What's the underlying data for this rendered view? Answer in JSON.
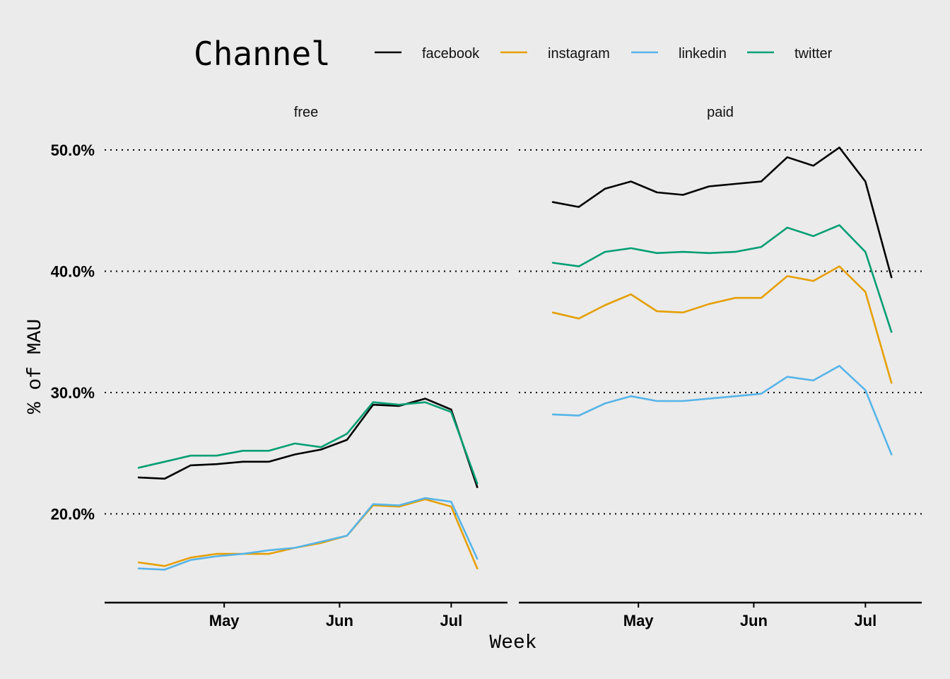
{
  "chart_data": {
    "type": "line",
    "legend": {
      "title": "Channel",
      "placement": "top",
      "entries": [
        {
          "name": "facebook",
          "color": "#000000"
        },
        {
          "name": "instagram",
          "color": "#E69F00"
        },
        {
          "name": "linkedin",
          "color": "#56B4E9"
        },
        {
          "name": "twitter",
          "color": "#009E73"
        }
      ]
    },
    "xlabel": "Week",
    "ylabel": "% of MAU",
    "x_ticks": [
      {
        "label": "May",
        "date": "2020-05-01"
      },
      {
        "label": "Jun",
        "date": "2020-06-01"
      },
      {
        "label": "Jul",
        "date": "2020-07-01"
      }
    ],
    "x": [
      "2020-04-08",
      "2020-04-15",
      "2020-04-22",
      "2020-04-29",
      "2020-05-06",
      "2020-05-13",
      "2020-05-20",
      "2020-05-27",
      "2020-06-03",
      "2020-06-10",
      "2020-06-17",
      "2020-06-24",
      "2020-07-01",
      "2020-07-08"
    ],
    "xlim": [
      "2020-04-04",
      "2020-07-11"
    ],
    "ylim": [
      0.135,
      0.5
    ],
    "y_ticks": [
      {
        "value": 0.2,
        "label": "20.0%"
      },
      {
        "value": 0.3,
        "label": "30.0%"
      },
      {
        "value": 0.4,
        "label": "40.0%"
      },
      {
        "value": 0.5,
        "label": "50.0%"
      }
    ],
    "grid": "horizontal dotted",
    "facets": [
      {
        "label": "free",
        "series": [
          {
            "name": "facebook",
            "values": [
              0.23,
              0.229,
              0.24,
              0.241,
              0.243,
              0.243,
              0.249,
              0.253,
              0.261,
              0.29,
              0.289,
              0.295,
              0.286,
              0.222
            ]
          },
          {
            "name": "instagram",
            "values": [
              0.16,
              0.157,
              0.164,
              0.167,
              0.167,
              0.167,
              0.172,
              0.176,
              0.182,
              0.207,
              0.206,
              0.212,
              0.206,
              0.155
            ]
          },
          {
            "name": "linkedin",
            "values": [
              0.155,
              0.154,
              0.162,
              0.165,
              0.167,
              0.17,
              0.172,
              0.177,
              0.182,
              0.208,
              0.207,
              0.213,
              0.21,
              0.163
            ]
          },
          {
            "name": "twitter",
            "values": [
              0.238,
              0.243,
              0.248,
              0.248,
              0.252,
              0.252,
              0.258,
              0.255,
              0.266,
              0.292,
              0.29,
              0.292,
              0.284,
              0.225
            ]
          }
        ]
      },
      {
        "label": "paid",
        "series": [
          {
            "name": "facebook",
            "values": [
              0.457,
              0.453,
              0.468,
              0.474,
              0.465,
              0.463,
              0.47,
              0.472,
              0.474,
              0.494,
              0.487,
              0.502,
              0.474,
              0.395
            ]
          },
          {
            "name": "instagram",
            "values": [
              0.366,
              0.361,
              0.372,
              0.381,
              0.367,
              0.366,
              0.373,
              0.378,
              0.378,
              0.396,
              0.392,
              0.404,
              0.383,
              0.308
            ]
          },
          {
            "name": "linkedin",
            "values": [
              0.282,
              0.281,
              0.291,
              0.297,
              0.293,
              0.293,
              0.295,
              0.297,
              0.299,
              0.313,
              0.31,
              0.322,
              0.302,
              0.249
            ]
          },
          {
            "name": "twitter",
            "values": [
              0.407,
              0.404,
              0.416,
              0.419,
              0.415,
              0.416,
              0.415,
              0.416,
              0.42,
              0.436,
              0.429,
              0.438,
              0.416,
              0.35
            ]
          }
        ]
      }
    ]
  }
}
